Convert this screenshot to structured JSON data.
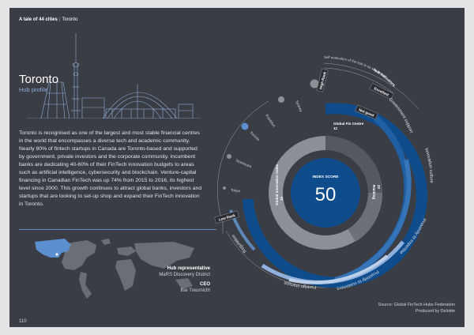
{
  "header": {
    "series": "A tale of 44 cities",
    "city": "Toronto"
  },
  "title": "Toronto",
  "subtitle": "Hub profile",
  "body": "Toronto is recognised as one of the largest and most stable financial centres in the world that encompasses a diverse tech and academic community. Nearly 80% of fintech startups in Canada are Toronto-based and supported by government, private investors and the corporate community. Incumbent banks are dedicating 40-60% of their FinTech innovation budgets to areas such as artificial intelligence, cybersecurity and blockchain. Venture-capital financing in Canadian FinTech was up 74% from 2015 to 2016, its highest level since 2000. This growth continues to attract global banks, investors and startups that are looking to set-up shop and expand their FinTech innovation in Toronto.",
  "people": {
    "hub_rep_label": "Hub representative",
    "hub_rep_value": "MaRS Discovery District",
    "ceo_label": "CEO",
    "ceo_value": "Ilse Treurnicht"
  },
  "colors": {
    "background": "#3b3d44",
    "accent_blue": "#1f5fa3",
    "deep_blue": "#0e4c8c",
    "light_blue": "#8fb0dc",
    "grey": "#8c8f96"
  },
  "chart": {
    "index_label": "INDEX SCORE",
    "index_score": "50",
    "global_fin_centre_label": "Global Fin Centre",
    "global_fin_centre_value": "12",
    "global_innovation_label": "Global innovation index",
    "global_innovation_value": "15",
    "inner_right_label": "Ranking",
    "inner_right_value": "22",
    "high_rank_label": "High Rank",
    "low_rank_label": "Low Rank",
    "hub_indicators_label": "Hub indicators",
    "self_eval_label": "Self evaluation of the hub in six key areas",
    "excellent_label": "Excellent",
    "not_good_label": "Not good",
    "cities": [
      "Sydney",
      "Frankfurt",
      "Toronto",
      "Stockholm",
      "Tokyo"
    ],
    "areas": [
      "Government support",
      "Innovation culture",
      "Proximity to expertise",
      "Proximity to customers",
      "Foreign startups",
      "Regulation"
    ]
  },
  "footer": {
    "source": "Source: Global FinTech Hubs Federation",
    "produced": "Produced by Deloitte",
    "page_number": "110"
  }
}
